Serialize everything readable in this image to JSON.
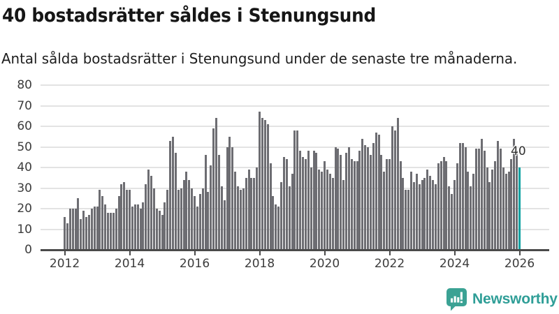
{
  "header": {
    "title": "40 bostadsrätter såldes i Stenungsund",
    "subtitle": "Antal sålda bostadsrätter i Stenungsund under de senaste tre månaderna."
  },
  "chart_data": {
    "type": "bar",
    "title": "40 bostadsrätter såldes i Stenungsund",
    "subtitle": "Antal sålda bostadsrätter i Stenungsund under de senaste tre månaderna.",
    "ylabel": "",
    "xlabel": "",
    "ylim": [
      0,
      80
    ],
    "y_ticks": [
      0,
      10,
      20,
      30,
      40,
      50,
      60,
      70,
      80
    ],
    "x_tick_labels": [
      "2012",
      "2014",
      "2016",
      "2018",
      "2020",
      "2022",
      "2024",
      "2026"
    ],
    "start_year": 2012,
    "start_month": 1,
    "grid": true,
    "values": [
      16,
      13,
      20,
      20,
      20,
      25,
      15,
      19,
      16,
      17,
      20,
      21,
      21,
      29,
      26,
      22,
      18,
      18,
      18,
      20,
      26,
      32,
      33,
      29,
      29,
      21,
      22,
      22,
      20,
      23,
      32,
      39,
      36,
      30,
      20,
      19,
      17,
      23,
      29,
      53,
      55,
      47,
      29,
      30,
      34,
      38,
      34,
      30,
      26,
      21,
      27,
      30,
      46,
      28,
      41,
      59,
      64,
      46,
      31,
      24,
      50,
      55,
      50,
      38,
      31,
      29,
      30,
      35,
      39,
      35,
      35,
      40,
      67,
      64,
      63,
      61,
      42,
      26,
      22,
      21,
      33,
      45,
      44,
      31,
      37,
      58,
      58,
      48,
      45,
      44,
      48,
      40,
      48,
      47,
      39,
      38,
      43,
      39,
      37,
      35,
      50,
      49,
      46,
      34,
      47,
      50,
      44,
      43,
      43,
      48,
      54,
      51,
      50,
      46,
      52,
      57,
      56,
      46,
      38,
      44,
      44,
      60,
      58,
      64,
      43,
      35,
      29,
      29,
      38,
      33,
      37,
      32,
      34,
      35,
      39,
      36,
      34,
      32,
      42,
      43,
      45,
      43,
      31,
      27,
      34,
      42,
      52,
      52,
      50,
      38,
      31,
      37,
      49,
      49,
      54,
      48,
      40,
      33,
      39,
      43,
      53,
      49,
      40,
      37,
      38,
      44,
      54,
      48,
      40
    ],
    "highlight_last": true,
    "last_value_label": "40",
    "colors": {
      "bar": "#6d6d72",
      "highlight": "#0aa1a1",
      "grid": "#e3e3e3",
      "axis": "#4a4a4a"
    }
  },
  "footer": {
    "brand": "Newsworthy",
    "brand_color": "#2f9e97",
    "logo_icon": "bar-chart-speech-bubble"
  }
}
